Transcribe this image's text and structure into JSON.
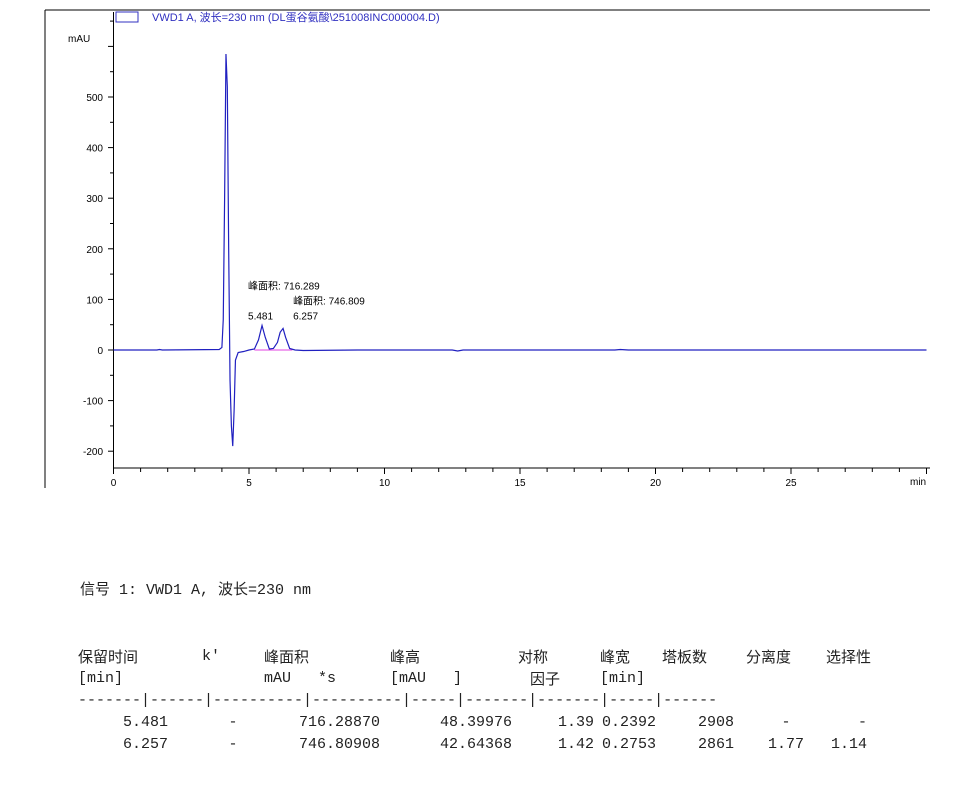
{
  "chart_data": {
    "type": "line",
    "legend": "VWD1 A, 波长=230 nm (DL蛋谷氨酸\\251008INC000004.D)",
    "legend_placement": "top-left",
    "ylabel": "mAU",
    "xlabel": "min",
    "xlim": [
      0,
      30
    ],
    "ylim": [
      -228,
      670
    ],
    "xticks": [
      0,
      5,
      10,
      15,
      20,
      25
    ],
    "yticks": [
      -200,
      -100,
      0,
      100,
      200,
      300,
      400,
      500
    ],
    "grid": false,
    "colors": {
      "trace": "#2020c0",
      "baseline": "#e040e0",
      "legend": "#3030c0"
    },
    "series": [
      {
        "x": [
          0,
          1.6,
          1.7,
          1.8,
          3.9,
          4.0,
          4.05,
          4.1,
          4.15,
          4.2,
          4.25,
          4.3,
          4.35,
          4.4,
          4.45,
          4.5,
          4.6,
          4.8,
          5.0,
          5.2,
          5.35,
          5.481,
          5.6,
          5.75,
          5.9,
          6.05,
          6.15,
          6.257,
          6.35,
          6.5,
          6.7,
          7.0,
          9,
          12.5,
          12.7,
          12.9,
          13.5,
          15,
          18.5,
          18.7,
          19,
          25,
          30
        ],
        "y": [
          0,
          0,
          1,
          0,
          1,
          5,
          60,
          300,
          585,
          520,
          200,
          -60,
          -150,
          -190,
          -120,
          -20,
          -5,
          -3,
          0,
          2,
          20,
          48.4,
          25,
          2,
          3,
          15,
          35,
          42.6,
          25,
          3,
          0,
          -1,
          0,
          0,
          -2,
          0,
          0,
          0,
          0,
          1,
          0,
          0,
          0
        ]
      }
    ],
    "annotations": [
      {
        "x": 5.481,
        "text": "5.481"
      },
      {
        "x": 5.481,
        "text": "峰面积: 716.289"
      },
      {
        "x": 6.257,
        "text": "6.257"
      },
      {
        "x": 6.257,
        "text": "峰面积: 746.809"
      }
    ]
  },
  "signal_title": "信号 1: VWD1 A, 波长=230 nm",
  "table": {
    "headers": [
      "保留时间",
      "k'",
      "峰面积",
      "峰高",
      "对称",
      "峰宽",
      "塔板数",
      "分离度",
      "选择性"
    ],
    "units": [
      "[min]",
      "",
      "mAU   *s",
      "[mAU   ]",
      "因子",
      "[min]",
      "",
      "",
      ""
    ],
    "separator": "-------|------|----------|----------|-----|-------|-------|-----|------",
    "rows": [
      [
        "5.481",
        "-",
        "716.28870",
        "48.39976",
        "1.39",
        "0.2392",
        "2908",
        "-",
        "-"
      ],
      [
        "6.257",
        "-",
        "746.80908",
        "42.64368",
        "1.42",
        "0.2753",
        "2861",
        "1.77",
        "1.14"
      ]
    ]
  }
}
